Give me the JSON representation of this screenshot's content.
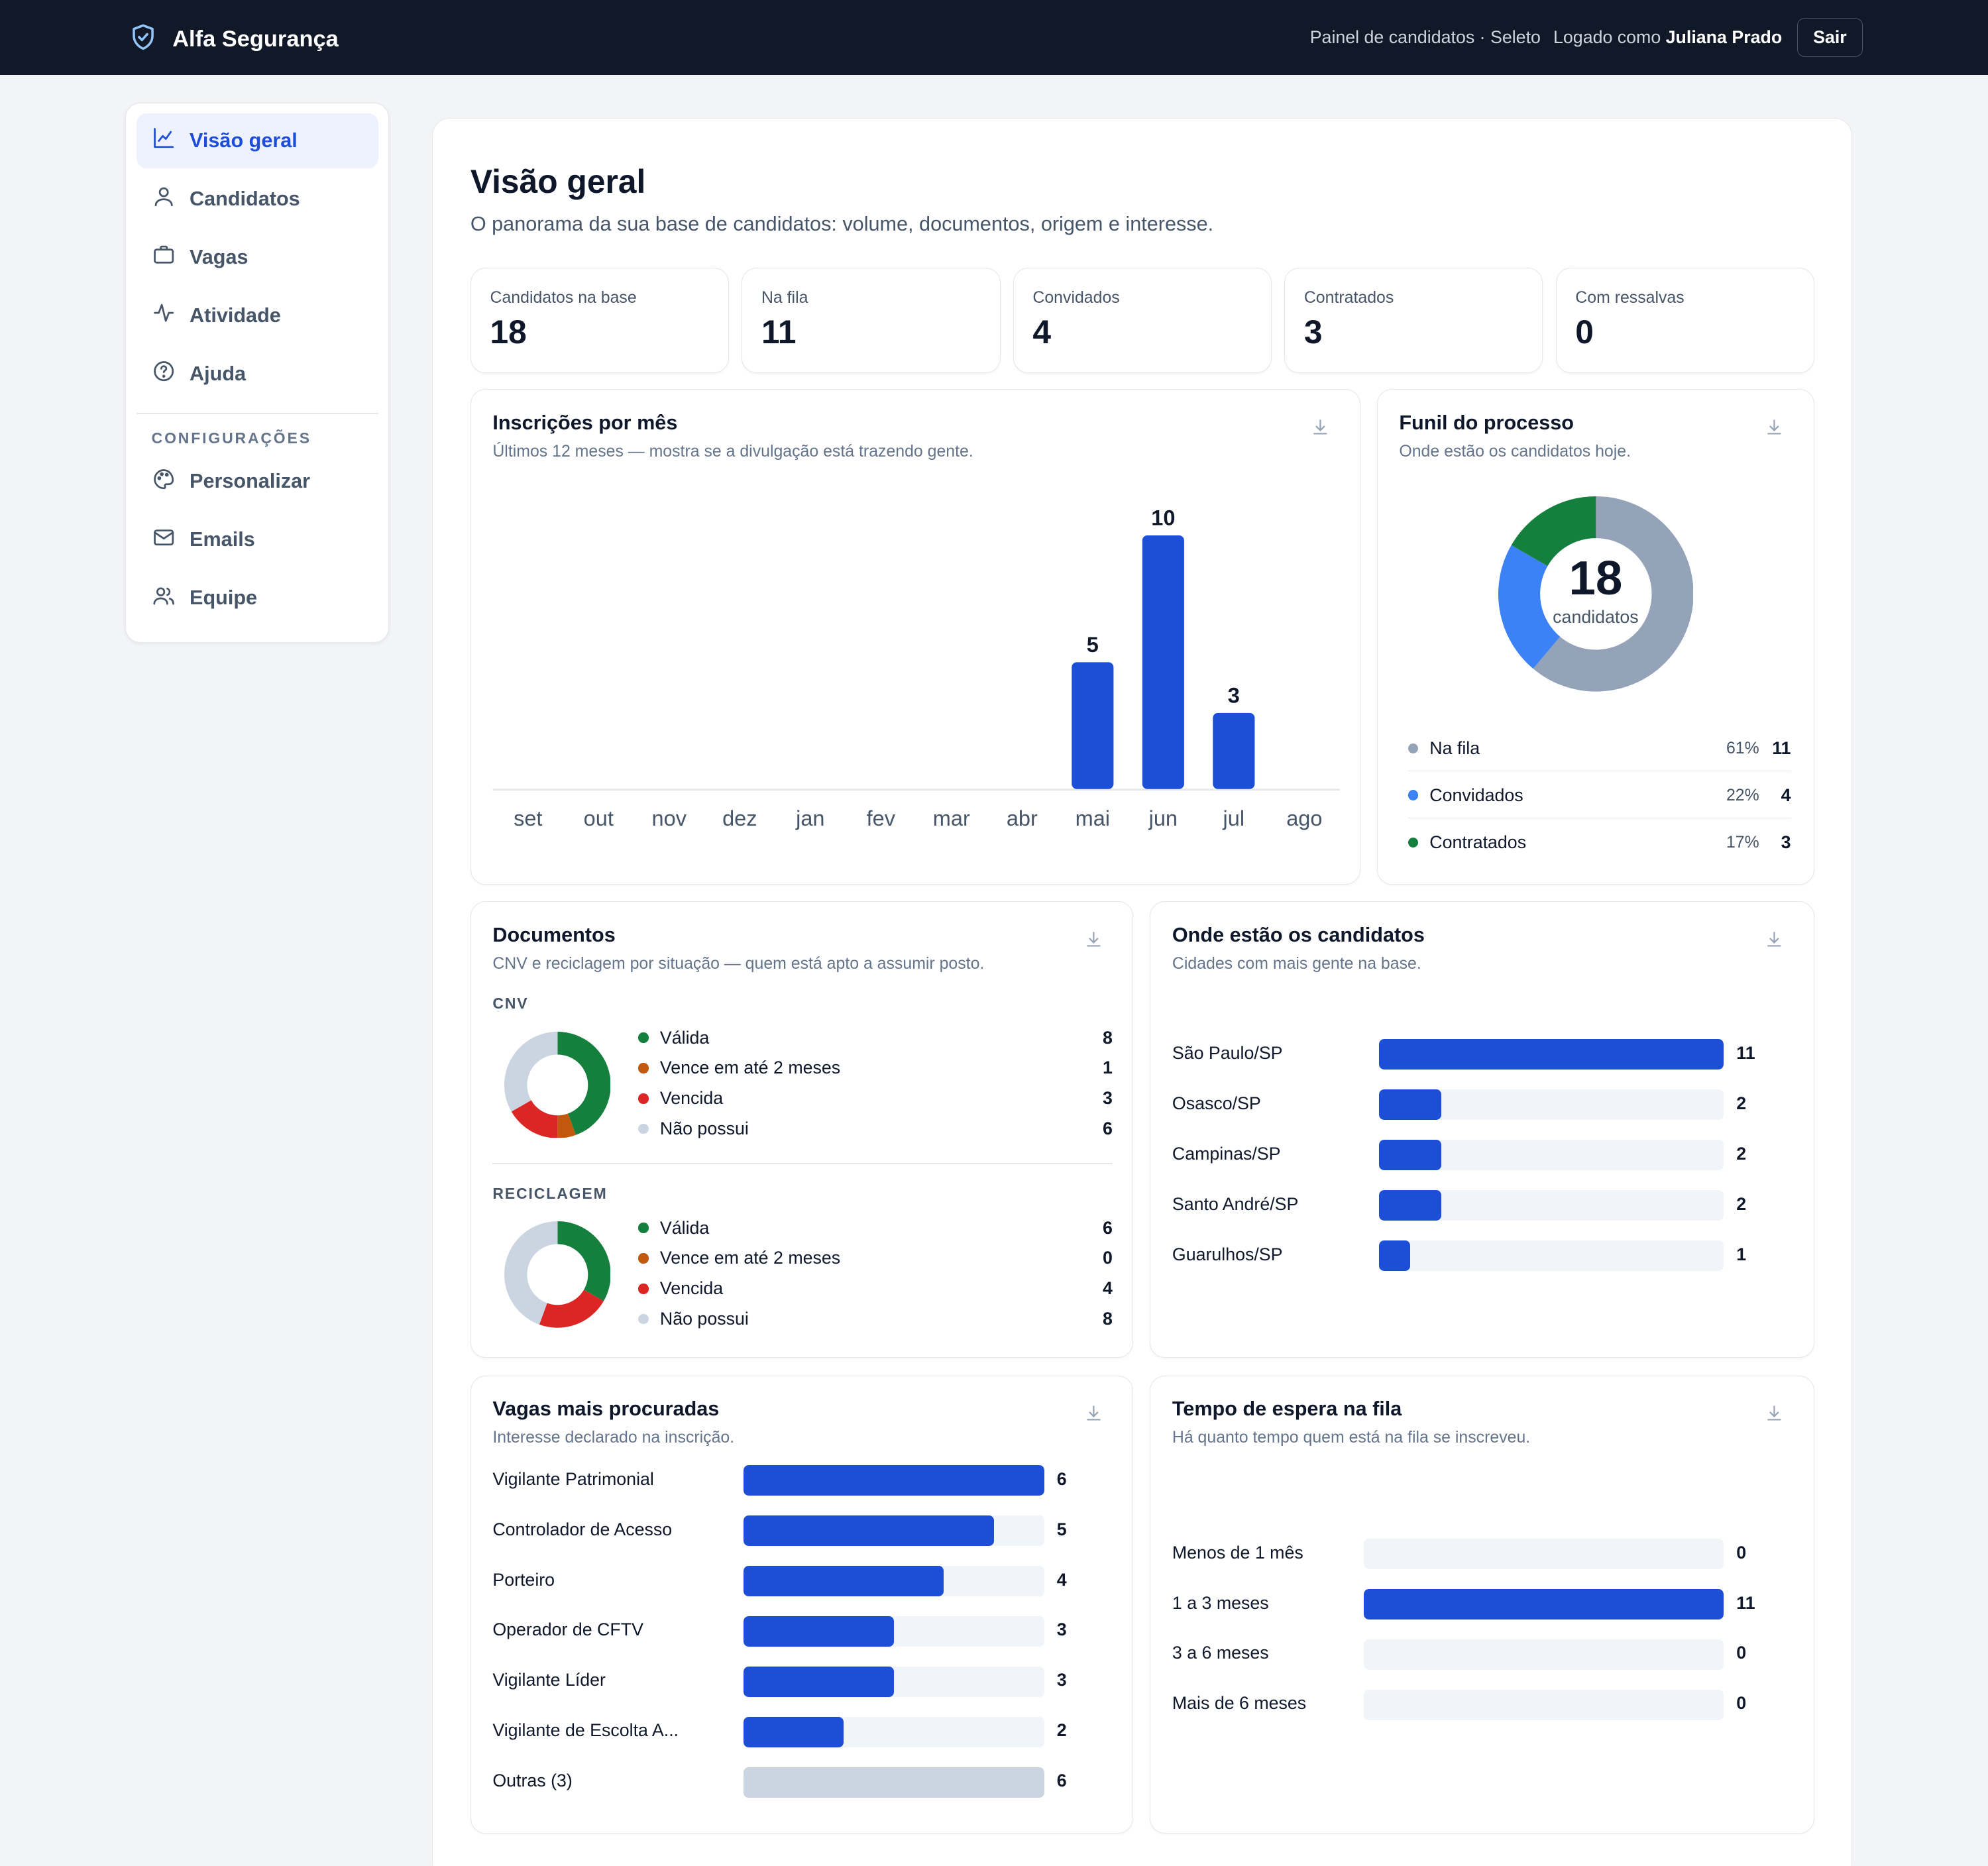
{
  "header": {
    "brand": "Alfa Segurança",
    "context": "Painel de candidatos · Seleto",
    "logged_prefix": "Logado como",
    "user_name": "Juliana Prado",
    "logout_label": "Sair",
    "brand_icon": "shield-check-icon"
  },
  "sidebar": {
    "items": [
      {
        "label": "Visão geral",
        "icon": "chart-line-icon",
        "active": true
      },
      {
        "label": "Candidatos",
        "icon": "user-icon"
      },
      {
        "label": "Vagas",
        "icon": "briefcase-icon"
      },
      {
        "label": "Atividade",
        "icon": "activity-icon"
      },
      {
        "label": "Ajuda",
        "icon": "help-circle-icon"
      }
    ],
    "section_label": "CONFIGURAÇÕES",
    "config_items": [
      {
        "label": "Personalizar",
        "icon": "palette-icon"
      },
      {
        "label": "Emails",
        "icon": "mail-icon"
      },
      {
        "label": "Equipe",
        "icon": "users-icon"
      }
    ]
  },
  "page": {
    "title": "Visão geral",
    "subtitle": "O panorama da sua base de candidatos: volume, documentos, origem e interesse."
  },
  "kpis": [
    {
      "label": "Candidatos na base",
      "value": "18"
    },
    {
      "label": "Na fila",
      "value": "11"
    },
    {
      "label": "Convidados",
      "value": "4"
    },
    {
      "label": "Contratados",
      "value": "3"
    },
    {
      "label": "Com ressalvas",
      "value": "0"
    }
  ],
  "colors": {
    "accent": "#1d4ed8",
    "green": "#15803d",
    "light_blue": "#3b82f6",
    "slate": "#94a3b8",
    "orange": "#c2580c",
    "red": "#dc2626",
    "light_gray": "#cbd5e1",
    "header_bg": "#111827"
  },
  "cards": {
    "inscricoes": {
      "title": "Inscrições por mês",
      "subtitle": "Últimos 12 meses — mostra se a divulgação está trazendo gente."
    },
    "funil": {
      "title": "Funil do processo",
      "subtitle": "Onde estão os candidatos hoje.",
      "center_value": "18",
      "center_label": "candidatos"
    },
    "documentos": {
      "title": "Documentos",
      "subtitle": "CNV e reciclagem por situação — quem está apto a assumir posto."
    },
    "cidades": {
      "title": "Onde estão os candidatos",
      "subtitle": "Cidades com mais gente na base."
    },
    "vagas": {
      "title": "Vagas mais procuradas",
      "subtitle": "Interesse declarado na inscrição."
    },
    "espera": {
      "title": "Tempo de espera na fila",
      "subtitle": "Há quanto tempo quem está na fila se inscreveu."
    }
  },
  "chart_data": [
    {
      "id": "inscricoes",
      "type": "bar",
      "title": "Inscrições por mês",
      "categories": [
        "set",
        "out",
        "nov",
        "dez",
        "jan",
        "fev",
        "mar",
        "abr",
        "mai",
        "jun",
        "jul",
        "ago"
      ],
      "values": [
        0,
        0,
        0,
        0,
        0,
        0,
        0,
        0,
        5,
        10,
        3,
        0
      ],
      "ylim": [
        0,
        10
      ]
    },
    {
      "id": "funil",
      "type": "pie",
      "title": "Funil do processo",
      "series": [
        {
          "name": "Na fila",
          "value": 11,
          "pct": "61%",
          "color": "#94a3b8"
        },
        {
          "name": "Convidados",
          "value": 4,
          "pct": "22%",
          "color": "#3b82f6"
        },
        {
          "name": "Contratados",
          "value": 3,
          "pct": "17%",
          "color": "#15803d"
        }
      ]
    },
    {
      "id": "cnv",
      "type": "pie",
      "title": "CNV",
      "series": [
        {
          "name": "Válida",
          "value": 8,
          "color": "#15803d"
        },
        {
          "name": "Vence em até 2 meses",
          "value": 1,
          "color": "#c2580c"
        },
        {
          "name": "Vencida",
          "value": 3,
          "color": "#dc2626"
        },
        {
          "name": "Não possui",
          "value": 6,
          "color": "#cbd5e1"
        }
      ]
    },
    {
      "id": "reciclagem",
      "type": "pie",
      "title": "RECICLAGEM",
      "series": [
        {
          "name": "Válida",
          "value": 6,
          "color": "#15803d"
        },
        {
          "name": "Vence em até 2 meses",
          "value": 0,
          "color": "#c2580c"
        },
        {
          "name": "Vencida",
          "value": 4,
          "color": "#dc2626"
        },
        {
          "name": "Não possui",
          "value": 8,
          "color": "#cbd5e1"
        }
      ]
    },
    {
      "id": "cidades",
      "type": "bar",
      "title": "Onde estão os candidatos",
      "categories": [
        "São Paulo/SP",
        "Osasco/SP",
        "Campinas/SP",
        "Santo André/SP",
        "Guarulhos/SP"
      ],
      "values": [
        11,
        2,
        2,
        2,
        1
      ],
      "xlim": [
        0,
        11
      ]
    },
    {
      "id": "vagas",
      "type": "bar",
      "title": "Vagas mais procuradas",
      "categories": [
        "Vigilante Patrimonial",
        "Controlador de Acesso",
        "Porteiro",
        "Operador de CFTV",
        "Vigilante Líder",
        "Vigilante de Escolta A...",
        "Outras (3)"
      ],
      "values": [
        6,
        5,
        4,
        3,
        3,
        2,
        6
      ],
      "xlim": [
        0,
        6
      ]
    },
    {
      "id": "espera",
      "type": "bar",
      "title": "Tempo de espera na fila",
      "categories": [
        "Menos de 1 mês",
        "1 a 3 meses",
        "3 a 6 meses",
        "Mais de 6 meses"
      ],
      "values": [
        0,
        11,
        0,
        0
      ],
      "xlim": [
        0,
        11
      ]
    }
  ]
}
